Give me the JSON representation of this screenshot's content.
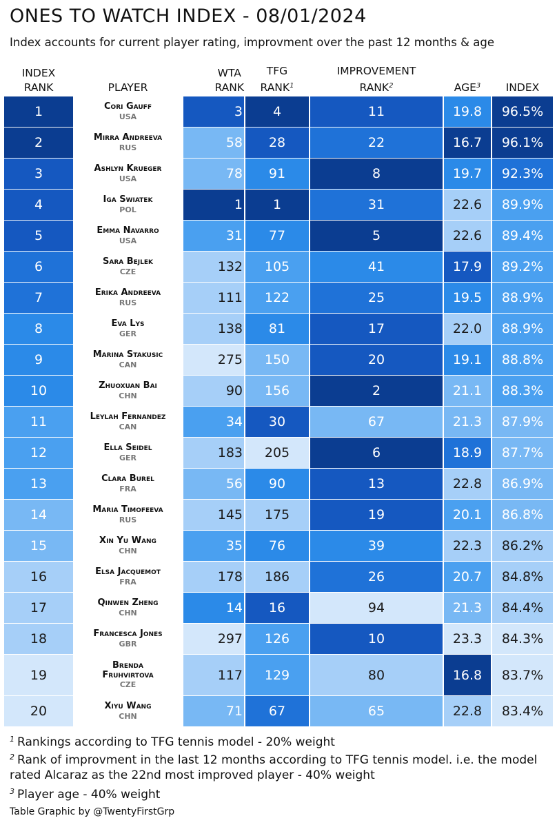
{
  "title": "ONES TO WATCH INDEX - 08/01/2024",
  "subtitle": "Index accounts for current player rating, improvment over the past 12 months & age",
  "colors": [
    "#0b3d91",
    "#1558c0",
    "#1f72d8",
    "#2b8ae8",
    "#4aa0f0",
    "#78b8f4",
    "#a6cff8",
    "#d3e7fb"
  ],
  "chart_data": {
    "type": "table",
    "columns": {
      "index_rank": {
        "line1": "INDEX",
        "line2": "RANK"
      },
      "player": "PLAYER",
      "wta_rank": {
        "line1": "WTA",
        "line2": "RANK"
      },
      "tfg_rank": {
        "line1": "TFG",
        "line2": "RANK",
        "sup": "1"
      },
      "improvement_rank": {
        "line1": "IMPROVEMENT",
        "line2": "RANK",
        "sup": "2"
      },
      "age": {
        "label": "AGE",
        "sup": "3"
      },
      "index": "INDEX"
    },
    "rows": [
      {
        "rank": "1",
        "name": "Cori Gauff",
        "country": "USA",
        "wta": "3",
        "tfg": "4",
        "imp": "11",
        "age": "19.8",
        "index": "96.5%"
      },
      {
        "rank": "2",
        "name": "Mirra Andreeva",
        "country": "RUS",
        "wta": "58",
        "tfg": "28",
        "imp": "22",
        "age": "16.7",
        "index": "96.1%"
      },
      {
        "rank": "3",
        "name": "Ashlyn Krueger",
        "country": "USA",
        "wta": "78",
        "tfg": "91",
        "imp": "8",
        "age": "19.7",
        "index": "92.3%"
      },
      {
        "rank": "4",
        "name": "Iga Swiatek",
        "country": "POL",
        "wta": "1",
        "tfg": "1",
        "imp": "31",
        "age": "22.6",
        "index": "89.9%"
      },
      {
        "rank": "5",
        "name": "Emma Navarro",
        "country": "USA",
        "wta": "31",
        "tfg": "77",
        "imp": "5",
        "age": "22.6",
        "index": "89.4%"
      },
      {
        "rank": "6",
        "name": "Sara Bejlek",
        "country": "CZE",
        "wta": "132",
        "tfg": "105",
        "imp": "41",
        "age": "17.9",
        "index": "89.2%"
      },
      {
        "rank": "7",
        "name": "Erika Andreeva",
        "country": "RUS",
        "wta": "111",
        "tfg": "122",
        "imp": "25",
        "age": "19.5",
        "index": "88.9%"
      },
      {
        "rank": "8",
        "name": "Eva Lys",
        "country": "GER",
        "wta": "138",
        "tfg": "81",
        "imp": "17",
        "age": "22.0",
        "index": "88.9%"
      },
      {
        "rank": "9",
        "name": "Marina Stakusic",
        "country": "CAN",
        "wta": "275",
        "tfg": "150",
        "imp": "20",
        "age": "19.1",
        "index": "88.8%"
      },
      {
        "rank": "10",
        "name": "Zhuoxuan Bai",
        "country": "CHN",
        "wta": "90",
        "tfg": "156",
        "imp": "2",
        "age": "21.1",
        "index": "88.3%"
      },
      {
        "rank": "11",
        "name": "Leylah Fernandez",
        "country": "CAN",
        "wta": "34",
        "tfg": "30",
        "imp": "67",
        "age": "21.3",
        "index": "87.9%"
      },
      {
        "rank": "12",
        "name": "Ella Seidel",
        "country": "GER",
        "wta": "183",
        "tfg": "205",
        "imp": "6",
        "age": "18.9",
        "index": "87.7%"
      },
      {
        "rank": "13",
        "name": "Clara Burel",
        "country": "FRA",
        "wta": "56",
        "tfg": "90",
        "imp": "13",
        "age": "22.8",
        "index": "86.9%"
      },
      {
        "rank": "14",
        "name": "Maria Timofeeva",
        "country": "RUS",
        "wta": "145",
        "tfg": "175",
        "imp": "19",
        "age": "20.1",
        "index": "86.8%"
      },
      {
        "rank": "15",
        "name": "Xin Yu Wang",
        "country": "CHN",
        "wta": "35",
        "tfg": "76",
        "imp": "39",
        "age": "22.3",
        "index": "86.2%"
      },
      {
        "rank": "16",
        "name": "Elsa Jacquemot",
        "country": "FRA",
        "wta": "178",
        "tfg": "186",
        "imp": "26",
        "age": "20.7",
        "index": "84.8%"
      },
      {
        "rank": "17",
        "name": "Qinwen Zheng",
        "country": "CHN",
        "wta": "14",
        "tfg": "16",
        "imp": "94",
        "age": "21.3",
        "index": "84.4%"
      },
      {
        "rank": "18",
        "name": "Francesca Jones",
        "country": "GBR",
        "wta": "297",
        "tfg": "126",
        "imp": "10",
        "age": "23.3",
        "index": "84.3%"
      },
      {
        "rank": "19",
        "name": "Brenda Fruhvirtova",
        "country": "CZE",
        "wta": "117",
        "tfg": "129",
        "imp": "80",
        "age": "16.8",
        "index": "83.7%"
      },
      {
        "rank": "20",
        "name": "Xiyu Wang",
        "country": "CHN",
        "wta": "71",
        "tfg": "67",
        "imp": "65",
        "age": "22.8",
        "index": "83.4%"
      }
    ]
  },
  "footnotes": [
    {
      "sup": "1",
      "text": "Rankings according to TFG tennis model - 20% weight"
    },
    {
      "sup": "2",
      "text": "Rank of improvment in the last 12 months according to TFG tennis model. i.e. the model rated Alcaraz as the 22nd most improved player - 40% weight"
    },
    {
      "sup": "3",
      "text": "Player age - 40% weight"
    }
  ],
  "credit": "Table Graphic by @TwentyFirstGrp"
}
